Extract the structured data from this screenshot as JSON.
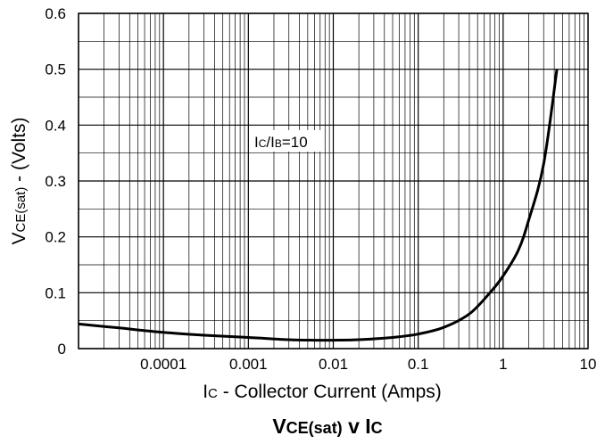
{
  "chart_data": {
    "type": "line",
    "title": {
      "main": "V",
      "sub": "CE(sat)",
      "tail": " v I",
      "tail_sub": "C"
    },
    "xlabel": {
      "main": "I",
      "sub": "C",
      "tail": " - Collector Current (Amps)"
    },
    "ylabel": {
      "main": "V",
      "sub": "CE(sat)",
      "tail": " - (Volts)"
    },
    "annotation": {
      "main": "I",
      "sub1": "C",
      "mid": "/I",
      "sub2": "B",
      "tail": "=10"
    },
    "x_scale": "log",
    "xlim": [
      1e-05,
      10
    ],
    "ylim": [
      0,
      0.6
    ],
    "grid": true,
    "x_tick_values": [
      0.0001,
      0.001,
      0.01,
      0.1,
      1,
      10
    ],
    "x_tick_labels": [
      "0.0001",
      "0.001",
      "0.01",
      "0.1",
      "1",
      "10"
    ],
    "y_tick_values": [
      0,
      0.1,
      0.2,
      0.3,
      0.4,
      0.5,
      0.6
    ],
    "y_tick_labels": [
      "0",
      "0.1",
      "0.2",
      "0.3",
      "0.4",
      "0.5",
      "0.6"
    ],
    "series": [
      {
        "color": "#000000",
        "x": [
          1e-05,
          3e-05,
          0.0001,
          0.0003,
          0.001,
          0.003,
          0.006,
          0.01,
          0.02,
          0.05,
          0.1,
          0.2,
          0.4,
          0.7,
          1,
          1.5,
          2,
          3,
          4.3
        ],
        "y": [
          0.044,
          0.037,
          0.029,
          0.024,
          0.02,
          0.016,
          0.015,
          0.015,
          0.016,
          0.02,
          0.026,
          0.038,
          0.062,
          0.1,
          0.13,
          0.175,
          0.23,
          0.33,
          0.5
        ]
      }
    ]
  }
}
